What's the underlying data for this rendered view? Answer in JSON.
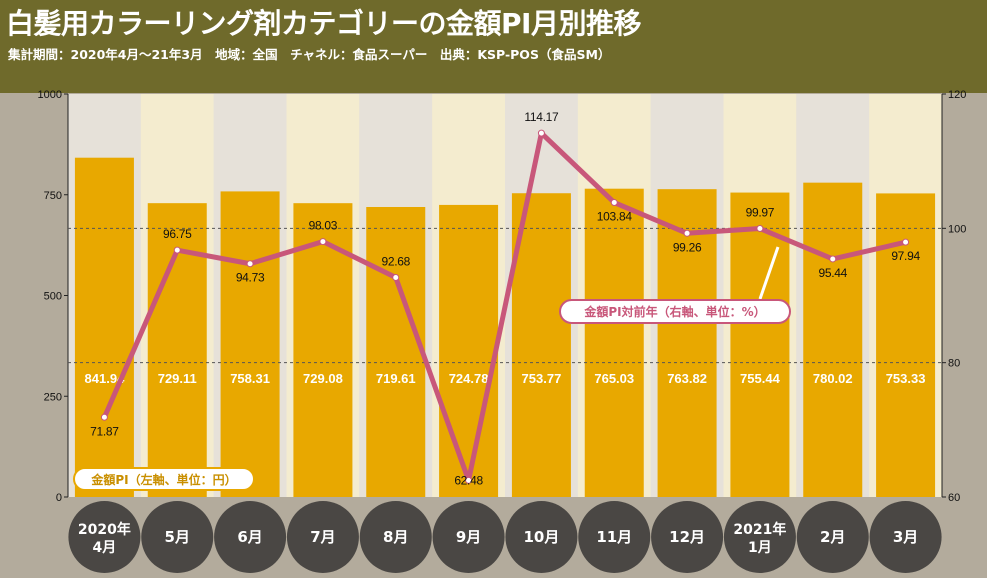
{
  "header": {
    "title": "白髪用カラーリング剤カテゴリーの金額PI月別推移",
    "subtitle": "集計期間：2020年4月～21年3月　地域：全国　チャネル：食品スーパー　出典：KSP-POS（食品SM）"
  },
  "chart_data": {
    "type": "bar+line",
    "categories": [
      [
        "2020年",
        "4月"
      ],
      [
        "5月"
      ],
      [
        "6月"
      ],
      [
        "7月"
      ],
      [
        "8月"
      ],
      [
        "9月"
      ],
      [
        "10月"
      ],
      [
        "11月"
      ],
      [
        "12月"
      ],
      [
        "2021年",
        "1月"
      ],
      [
        "2月"
      ],
      [
        "3月"
      ]
    ],
    "bar_series": {
      "name": "金額PI（左軸、単位：円）",
      "values": [
        841.94,
        729.11,
        758.31,
        729.08,
        719.61,
        724.78,
        753.77,
        765.03,
        763.82,
        755.44,
        780.02,
        753.33
      ],
      "color": "#e8a800"
    },
    "line_series": {
      "name": "金額PI対前年（右軸、単位：%）",
      "values": [
        71.87,
        96.75,
        94.73,
        98.03,
        92.68,
        62.48,
        114.17,
        103.84,
        99.26,
        99.97,
        95.44,
        97.94
      ],
      "color": "#c8577a"
    },
    "y_left": {
      "ylim": [
        0,
        1000
      ],
      "ticks": [
        0,
        250,
        500,
        750,
        1000
      ]
    },
    "y_right": {
      "ylim": [
        60,
        120
      ],
      "ticks": [
        60,
        80,
        100,
        120
      ]
    },
    "grid": {
      "dashed_lines_right_axis": [
        80,
        100
      ]
    },
    "colors": {
      "header": "#6f6a2b",
      "background": "#b3ab9c",
      "month_circle": "#4a4744",
      "band_light": "#e6e1d9",
      "band_cream": "#f4eccf"
    }
  }
}
